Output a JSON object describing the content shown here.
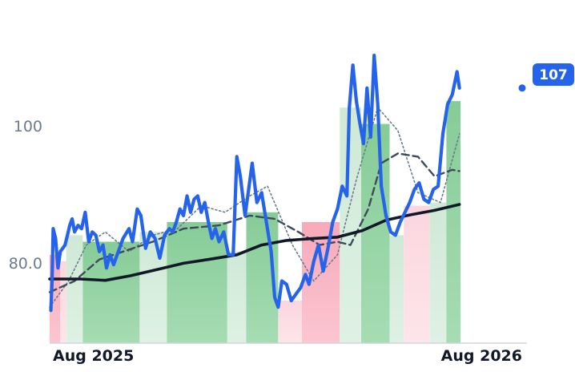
{
  "chart_data": {
    "type": "line",
    "title": "",
    "xlabel": "",
    "ylabel": "",
    "x_range": [
      "2025-07-25",
      "2026-09-01"
    ],
    "ylim": [
      68,
      118
    ],
    "y_ticks": [
      {
        "value": 80,
        "label": "80.0"
      },
      {
        "value": 100,
        "label": "100"
      }
    ],
    "x_ticks": [
      {
        "date": "2025-08-01",
        "label": "Aug 2025"
      },
      {
        "date": "2026-08-01",
        "label": "Aug 2026"
      }
    ],
    "grid": false,
    "legend": "none",
    "last_value_label": "107",
    "colors": {
      "price_line": "#2563eb",
      "ma_long": "#111827",
      "ma_mid": "#3f4a5a",
      "ma_short": "#6b7b8c",
      "bar_up": "#8fd19e",
      "bar_up_light": "#d4ecd9",
      "bar_down": "#f9b4c2",
      "bar_down_light": "#fcdbe2",
      "badge": "#2563eb"
    },
    "series": [
      {
        "key": "price",
        "style": "thick-solid",
        "points": [
          [
            "2025-07-26",
            73.0
          ],
          [
            "2025-07-27",
            77.5
          ],
          [
            "2025-07-28",
            85.5
          ],
          [
            "2025-07-30",
            84.0
          ],
          [
            "2025-08-01",
            79.5
          ],
          [
            "2025-08-03",
            82.0
          ],
          [
            "2025-08-05",
            82.5
          ],
          [
            "2025-08-07",
            83.0
          ],
          [
            "2025-08-09",
            84.5
          ],
          [
            "2025-08-11",
            86.0
          ],
          [
            "2025-08-13",
            87.0
          ],
          [
            "2025-08-15",
            85.0
          ],
          [
            "2025-08-18",
            86.0
          ],
          [
            "2025-08-21",
            85.5
          ],
          [
            "2025-08-24",
            88.0
          ],
          [
            "2025-08-27",
            83.5
          ],
          [
            "2025-08-30",
            85.0
          ],
          [
            "2025-09-02",
            84.5
          ],
          [
            "2025-09-05",
            82.0
          ],
          [
            "2025-09-08",
            83.0
          ],
          [
            "2025-09-11",
            79.5
          ],
          [
            "2025-09-14",
            81.5
          ],
          [
            "2025-09-17",
            80.0
          ],
          [
            "2025-09-20",
            81.5
          ],
          [
            "2025-09-25",
            84.0
          ],
          [
            "2025-09-30",
            85.5
          ],
          [
            "2025-10-03",
            83.5
          ],
          [
            "2025-10-07",
            88.5
          ],
          [
            "2025-10-10",
            87.5
          ],
          [
            "2025-10-14",
            82.5
          ],
          [
            "2025-10-18",
            85.0
          ],
          [
            "2025-10-22",
            84.0
          ],
          [
            "2025-10-26",
            81.0
          ],
          [
            "2025-10-30",
            84.5
          ],
          [
            "2025-11-03",
            85.5
          ],
          [
            "2025-11-06",
            85.0
          ],
          [
            "2025-11-09",
            86.5
          ],
          [
            "2025-11-12",
            88.5
          ],
          [
            "2025-11-15",
            87.5
          ],
          [
            "2025-11-18",
            90.5
          ],
          [
            "2025-11-21",
            88.0
          ],
          [
            "2025-11-24",
            90.0
          ],
          [
            "2025-11-27",
            90.5
          ],
          [
            "2025-11-30",
            88.0
          ],
          [
            "2025-12-03",
            89.5
          ],
          [
            "2025-12-06",
            86.5
          ],
          [
            "2025-12-09",
            84.0
          ],
          [
            "2025-12-12",
            85.5
          ],
          [
            "2025-12-15",
            83.5
          ],
          [
            "2025-12-19",
            85.0
          ],
          [
            "2025-12-23",
            81.5
          ],
          [
            "2025-12-27",
            81.5
          ],
          [
            "2025-12-30",
            96.5
          ],
          [
            "2026-01-02",
            93.5
          ],
          [
            "2026-01-06",
            87.5
          ],
          [
            "2026-01-09",
            91.5
          ],
          [
            "2026-01-12",
            95.5
          ],
          [
            "2026-01-16",
            89.5
          ],
          [
            "2026-01-20",
            91.0
          ],
          [
            "2026-01-24",
            86.5
          ],
          [
            "2026-01-28",
            82.0
          ],
          [
            "2026-01-31",
            75.0
          ],
          [
            "2026-02-03",
            73.5
          ],
          [
            "2026-02-06",
            77.5
          ],
          [
            "2026-02-10",
            77.0
          ],
          [
            "2026-02-14",
            74.5
          ],
          [
            "2026-02-18",
            75.5
          ],
          [
            "2026-02-22",
            76.5
          ],
          [
            "2026-02-26",
            78.5
          ],
          [
            "2026-03-01",
            77.0
          ],
          [
            "2026-03-05",
            80.5
          ],
          [
            "2026-03-09",
            83.0
          ],
          [
            "2026-03-13",
            79.0
          ],
          [
            "2026-03-17",
            82.5
          ],
          [
            "2026-03-21",
            86.5
          ],
          [
            "2026-03-25",
            88.5
          ],
          [
            "2026-03-29",
            92.0
          ],
          [
            "2026-04-02",
            90.5
          ],
          [
            "2026-04-04",
            104.0
          ],
          [
            "2026-04-07",
            110.5
          ],
          [
            "2026-04-10",
            105.0
          ],
          [
            "2026-04-13",
            101.5
          ],
          [
            "2026-04-16",
            98.5
          ],
          [
            "2026-04-19",
            107.0
          ],
          [
            "2026-04-22",
            99.5
          ],
          [
            "2026-04-25",
            112.0
          ],
          [
            "2026-04-28",
            104.5
          ],
          [
            "2026-05-01",
            92.0
          ],
          [
            "2026-05-05",
            87.5
          ],
          [
            "2026-05-09",
            85.0
          ],
          [
            "2026-05-13",
            84.5
          ],
          [
            "2026-05-17",
            86.5
          ],
          [
            "2026-05-21",
            88.0
          ],
          [
            "2026-05-25",
            89.5
          ],
          [
            "2026-05-29",
            91.5
          ],
          [
            "2026-06-02",
            92.5
          ],
          [
            "2026-06-06",
            90.0
          ],
          [
            "2026-06-10",
            89.5
          ],
          [
            "2026-06-14",
            91.5
          ],
          [
            "2026-06-18",
            92.0
          ],
          [
            "2026-06-22",
            100.0
          ],
          [
            "2026-06-26",
            104.5
          ],
          [
            "2026-06-30",
            106.0
          ],
          [
            "2026-07-04",
            109.5
          ],
          [
            "2026-07-06",
            107.0
          ]
        ]
      },
      {
        "key": "ma_long",
        "style": "thick-solid",
        "points": [
          [
            "2025-07-25",
            77.8
          ],
          [
            "2025-08-20",
            77.8
          ],
          [
            "2025-09-10",
            77.6
          ],
          [
            "2025-10-01",
            78.3
          ],
          [
            "2025-10-25",
            79.3
          ],
          [
            "2025-11-15",
            80.2
          ],
          [
            "2025-12-10",
            80.9
          ],
          [
            "2025-12-30",
            81.5
          ],
          [
            "2026-01-20",
            83.0
          ],
          [
            "2026-02-10",
            83.7
          ],
          [
            "2026-03-05",
            84.0
          ],
          [
            "2026-03-25",
            84.2
          ],
          [
            "2026-04-15",
            85.2
          ],
          [
            "2026-05-05",
            86.8
          ],
          [
            "2026-05-25",
            87.6
          ],
          [
            "2026-06-15",
            88.3
          ],
          [
            "2026-07-06",
            89.2
          ]
        ]
      },
      {
        "key": "ma_mid",
        "style": "dashed",
        "points": [
          [
            "2025-07-25",
            75.8
          ],
          [
            "2025-08-15",
            77.5
          ],
          [
            "2025-09-05",
            80.8
          ],
          [
            "2025-09-25",
            82.0
          ],
          [
            "2025-10-20",
            83.5
          ],
          [
            "2025-11-15",
            85.5
          ],
          [
            "2025-12-15",
            86.0
          ],
          [
            "2026-01-10",
            87.5
          ],
          [
            "2026-01-31",
            87.0
          ],
          [
            "2026-02-20",
            85.0
          ],
          [
            "2026-03-10",
            83.0
          ],
          [
            "2026-03-25",
            83.5
          ],
          [
            "2026-04-05",
            83.0
          ],
          [
            "2026-04-20",
            88.5
          ],
          [
            "2026-05-01",
            95.5
          ],
          [
            "2026-05-15",
            97.0
          ],
          [
            "2026-06-01",
            96.5
          ],
          [
            "2026-06-15",
            93.5
          ],
          [
            "2026-06-30",
            94.5
          ],
          [
            "2026-07-06",
            94.3
          ]
        ]
      },
      {
        "key": "ma_short",
        "style": "dotted",
        "points": [
          [
            "2025-07-25",
            73.5
          ],
          [
            "2025-08-10",
            77.5
          ],
          [
            "2025-08-25",
            83.0
          ],
          [
            "2025-09-10",
            85.0
          ],
          [
            "2025-09-30",
            82.0
          ],
          [
            "2025-10-20",
            84.5
          ],
          [
            "2025-11-10",
            85.5
          ],
          [
            "2025-11-30",
            89.0
          ],
          [
            "2025-12-20",
            88.0
          ],
          [
            "2026-01-10",
            90.5
          ],
          [
            "2026-01-25",
            92.0
          ],
          [
            "2026-02-15",
            83.0
          ],
          [
            "2026-03-05",
            77.5
          ],
          [
            "2026-03-25",
            81.5
          ],
          [
            "2026-04-10",
            93.0
          ],
          [
            "2026-04-28",
            104.0
          ],
          [
            "2026-05-15",
            100.5
          ],
          [
            "2026-06-01",
            91.0
          ],
          [
            "2026-06-20",
            89.5
          ],
          [
            "2026-07-06",
            100.0
          ]
        ]
      }
    ],
    "bars": [
      {
        "start": "2025-07-25",
        "end": "2025-08-03",
        "value": 81.5,
        "dir": "down",
        "shade": "dark"
      },
      {
        "start": "2025-08-03",
        "end": "2025-08-08",
        "value": 80.5,
        "dir": "down",
        "shade": "light"
      },
      {
        "start": "2025-08-08",
        "end": "2025-08-22",
        "value": 84.5,
        "dir": "up",
        "shade": "light"
      },
      {
        "start": "2025-08-22",
        "end": "2025-10-09",
        "value": 83.5,
        "dir": "up",
        "shade": "dark"
      },
      {
        "start": "2025-10-09",
        "end": "2025-11-01",
        "value": 85.0,
        "dir": "up",
        "shade": "light"
      },
      {
        "start": "2025-11-01",
        "end": "2025-12-22",
        "value": 86.5,
        "dir": "up",
        "shade": "dark"
      },
      {
        "start": "2025-12-22",
        "end": "2026-01-07",
        "value": 82.0,
        "dir": "up",
        "shade": "light"
      },
      {
        "start": "2026-01-07",
        "end": "2026-02-03",
        "value": 88.0,
        "dir": "up",
        "shade": "dark"
      },
      {
        "start": "2026-02-03",
        "end": "2026-02-23",
        "value": 74.5,
        "dir": "down",
        "shade": "light"
      },
      {
        "start": "2026-02-23",
        "end": "2026-03-27",
        "value": 86.5,
        "dir": "down",
        "shade": "dark"
      },
      {
        "start": "2026-03-27",
        "end": "2026-04-14",
        "value": 104.0,
        "dir": "up",
        "shade": "light"
      },
      {
        "start": "2026-04-14",
        "end": "2026-05-08",
        "value": 101.5,
        "dir": "up",
        "shade": "dark"
      },
      {
        "start": "2026-05-08",
        "end": "2026-05-20",
        "value": 84.5,
        "dir": "up",
        "shade": "light"
      },
      {
        "start": "2026-05-20",
        "end": "2026-06-11",
        "value": 89.0,
        "dir": "down",
        "shade": "light"
      },
      {
        "start": "2026-06-11",
        "end": "2026-06-25",
        "value": 89.5,
        "dir": "up",
        "shade": "light"
      },
      {
        "start": "2026-06-25",
        "end": "2026-07-07",
        "value": 105.0,
        "dir": "up",
        "shade": "dark"
      }
    ]
  }
}
